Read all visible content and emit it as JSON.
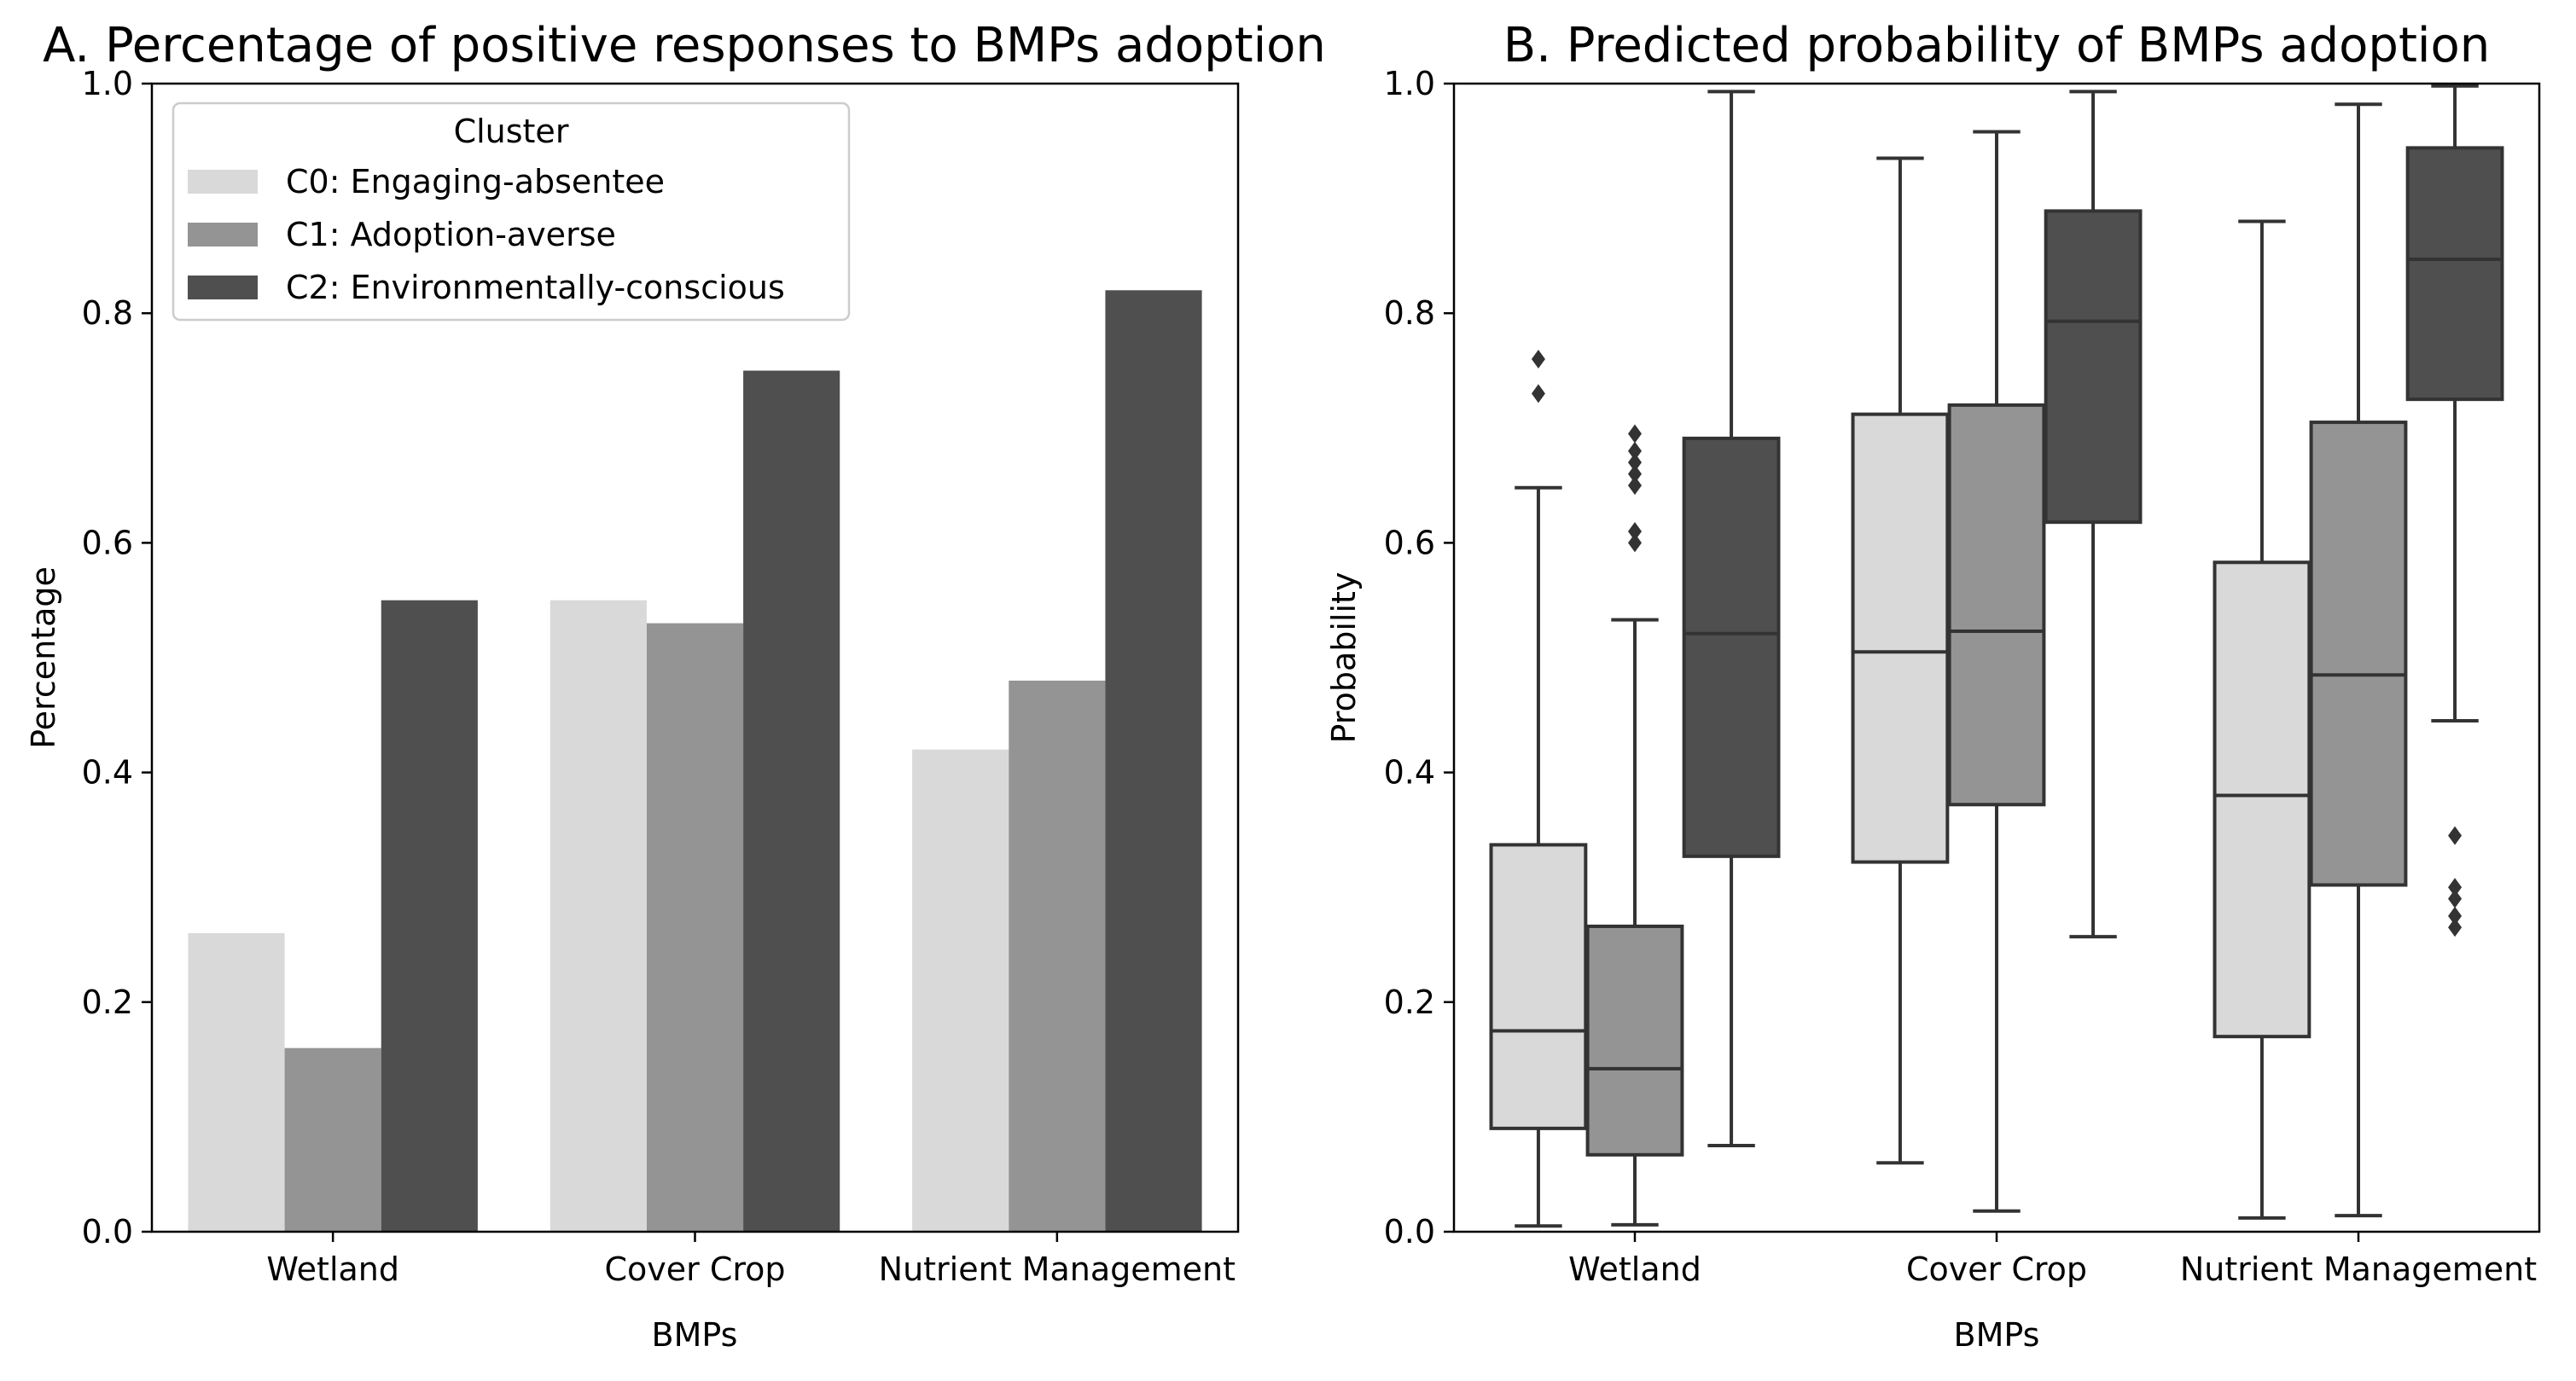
{
  "figure": {
    "colors": {
      "C0": "#d9d9d9",
      "C1": "#949494",
      "C2": "#4f4f4f",
      "axes": "#000000",
      "box_edge": "#333333"
    }
  },
  "chart_data": [
    {
      "type": "bar",
      "title": "A. Percentage of positive responses to BMPs adoption",
      "xlabel": "BMPs",
      "ylabel": "Percentage",
      "ylim": [
        0,
        1.0
      ],
      "yticks": [
        "0.0",
        "0.2",
        "0.4",
        "0.6",
        "0.8",
        "1.0"
      ],
      "categories": [
        "Wetland",
        "Cover Crop",
        "Nutrient Management"
      ],
      "grid": false,
      "legend": {
        "title": "Cluster",
        "placement": "top-left",
        "entries": [
          "C0: Engaging-absentee",
          "C1: Adoption-averse",
          "C2: Environmentally-conscious"
        ]
      },
      "series": [
        {
          "name": "C0: Engaging-absentee",
          "values": [
            0.26,
            0.55,
            0.42
          ]
        },
        {
          "name": "C1: Adoption-averse",
          "values": [
            0.16,
            0.53,
            0.48
          ]
        },
        {
          "name": "C2: Environmentally-conscious",
          "values": [
            0.55,
            0.75,
            0.82
          ]
        }
      ]
    },
    {
      "type": "box",
      "title": "B. Predicted probability of BMPs adoption",
      "xlabel": "BMPs",
      "ylabel": "Probability",
      "ylim": [
        0,
        1.0
      ],
      "yticks": [
        "0.0",
        "0.2",
        "0.4",
        "0.6",
        "0.8",
        "1.0"
      ],
      "categories": [
        "Wetland",
        "Cover Crop",
        "Nutrient Management"
      ],
      "grid": false,
      "series": [
        {
          "name": "C0: Engaging-absentee",
          "boxes": [
            {
              "whislo": 0.005,
              "q1": 0.09,
              "median": 0.175,
              "q3": 0.337,
              "whishi": 0.648,
              "fliers": [
                0.73,
                0.76
              ]
            },
            {
              "whislo": 0.06,
              "q1": 0.322,
              "median": 0.505,
              "q3": 0.712,
              "whishi": 0.935,
              "fliers": []
            },
            {
              "whislo": 0.012,
              "q1": 0.17,
              "median": 0.38,
              "q3": 0.583,
              "whishi": 0.88,
              "fliers": []
            }
          ]
        },
        {
          "name": "C1: Adoption-averse",
          "boxes": [
            {
              "whislo": 0.006,
              "q1": 0.067,
              "median": 0.142,
              "q3": 0.266,
              "whishi": 0.533,
              "fliers": [
                0.6,
                0.61,
                0.65,
                0.66,
                0.67,
                0.68,
                0.695
              ]
            },
            {
              "whislo": 0.018,
              "q1": 0.372,
              "median": 0.523,
              "q3": 0.72,
              "whishi": 0.958,
              "fliers": []
            },
            {
              "whislo": 0.014,
              "q1": 0.302,
              "median": 0.485,
              "q3": 0.705,
              "whishi": 0.982,
              "fliers": []
            }
          ]
        },
        {
          "name": "C2: Environmentally-conscious",
          "boxes": [
            {
              "whislo": 0.075,
              "q1": 0.327,
              "median": 0.521,
              "q3": 0.691,
              "whishi": 0.993,
              "fliers": []
            },
            {
              "whislo": 0.257,
              "q1": 0.618,
              "median": 0.793,
              "q3": 0.889,
              "whishi": 0.993,
              "fliers": []
            },
            {
              "whislo": 0.445,
              "q1": 0.725,
              "median": 0.847,
              "q3": 0.944,
              "whishi": 0.998,
              "fliers": [
                0.265,
                0.275,
                0.29,
                0.3,
                0.345
              ]
            }
          ]
        }
      ]
    }
  ]
}
